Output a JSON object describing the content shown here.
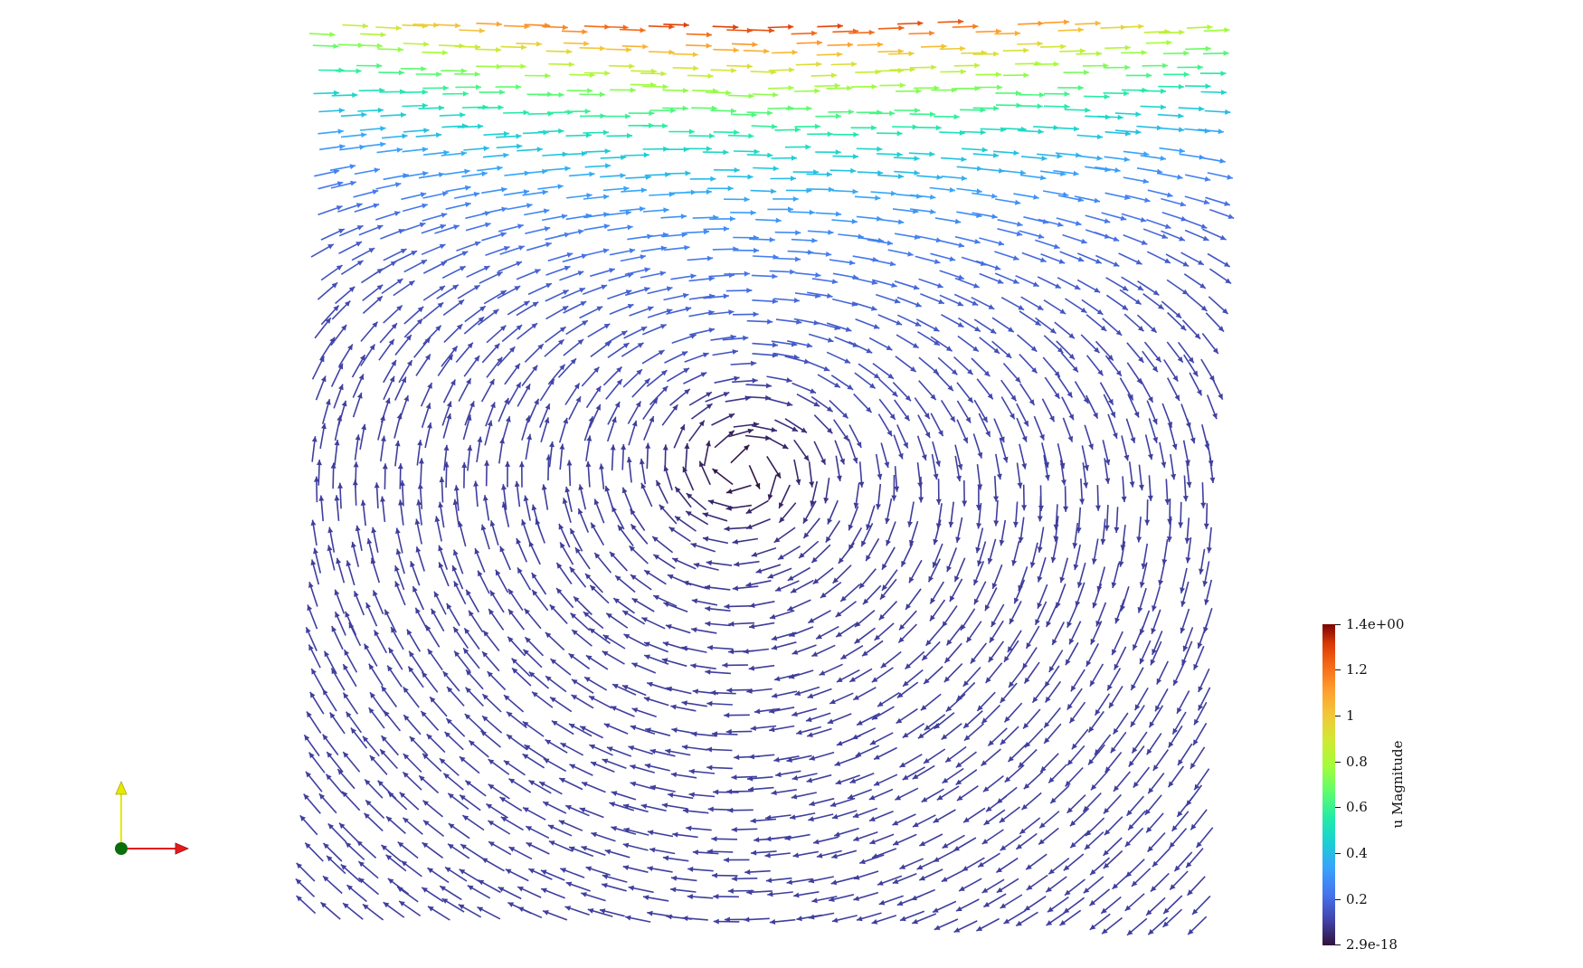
{
  "colorbar": {
    "title": "u Magnitude",
    "labels": [
      "1.4e+00",
      "1.2",
      "1",
      "0.8",
      "0.6",
      "0.4",
      "0.2",
      "2.9e-18"
    ],
    "label_values": [
      1.4,
      1.2,
      1.0,
      0.8,
      0.6,
      0.4,
      0.2,
      0.0
    ],
    "range": [
      0,
      1.4
    ],
    "colormap": "turbo"
  },
  "orientation_axes": {
    "x_color": "#e41a1c",
    "y_color": "#e8e800",
    "origin_color": "#0a6e0a"
  },
  "field": {
    "kind": "glyph-vector-field",
    "vortex_center": [
      0.48,
      0.47
    ],
    "lid_speed": 1.4
  }
}
